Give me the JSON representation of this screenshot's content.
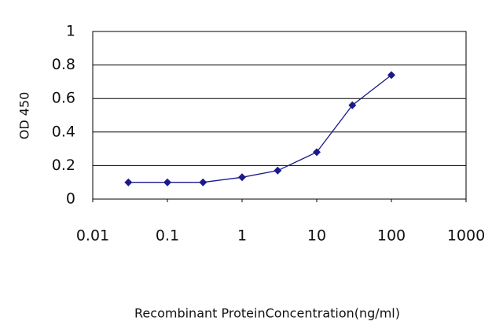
{
  "chart_data": {
    "type": "line",
    "xscale": "log",
    "x": [
      0.03,
      0.1,
      0.3,
      1,
      3,
      10,
      30,
      100
    ],
    "values": [
      0.1,
      0.1,
      0.1,
      0.13,
      0.17,
      0.28,
      0.56,
      0.74
    ],
    "color": "#1a1a8c",
    "xlim": [
      0.01,
      1000
    ],
    "xticks": [
      0.01,
      0.1,
      1,
      10,
      100,
      1000
    ],
    "ylim": [
      0,
      1
    ],
    "yticks": [
      0,
      0.2,
      0.4,
      0.6,
      0.8,
      1
    ],
    "grid": true,
    "xlabel": "Recombinant ProteinConcentration(ng/ml)",
    "ylabel": "OD 450"
  }
}
